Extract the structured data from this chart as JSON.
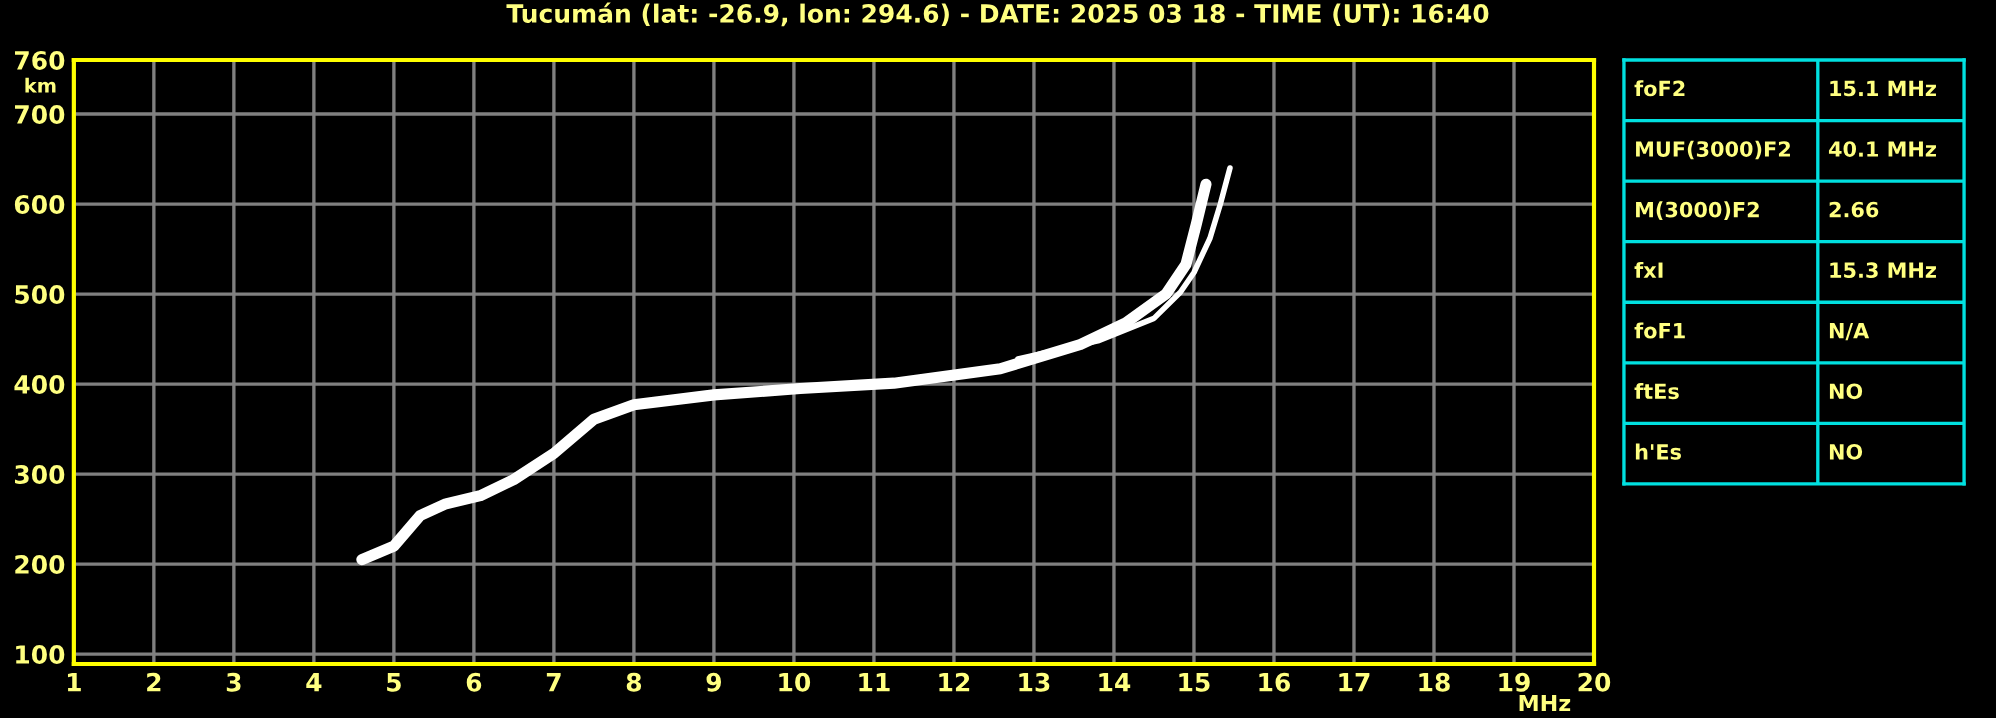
{
  "chart_data": [
    {
      "type": "line",
      "title": "Tucumán (lat: -26.9, lon: 294.6) - DATE: 2025 03 18 - TIME (UT): 16:40",
      "xlabel": "MHz",
      "ylabel": "km",
      "xlim": [
        1,
        20
      ],
      "xticks": [
        1,
        2,
        3,
        4,
        5,
        6,
        7,
        8,
        9,
        10,
        11,
        12,
        13,
        14,
        15,
        16,
        17,
        18,
        19,
        20
      ],
      "ylim": [
        89,
        760
      ],
      "yticks": [
        100,
        200,
        300,
        400,
        500,
        600,
        700,
        760
      ],
      "grid": true,
      "marker": "none",
      "line_style": "solid",
      "series": [
        {
          "color": "#ffffff",
          "x": [
            4.6,
            5.0,
            5.33,
            5.65,
            6.08,
            6.5,
            7.0,
            7.5,
            8.0,
            9.0,
            10.08,
            11.25,
            12.58,
            13.58,
            14.15,
            14.65,
            14.9,
            15.03,
            15.15
          ],
          "values": [
            205,
            220,
            254,
            267,
            276,
            294,
            323,
            361,
            377,
            388,
            395,
            401,
            417,
            444,
            468,
            500,
            533,
            578,
            622
          ]
        },
        {
          "color": "#ffffff",
          "x": [
            12.8,
            13.8,
            14.5,
            14.83,
            15.0,
            15.2,
            15.33,
            15.45
          ],
          "values": [
            428,
            448,
            473,
            502,
            524,
            562,
            600,
            640
          ]
        }
      ]
    },
    {
      "type": "other",
      "categories": [
        "foF2",
        "MUF(3000)F2",
        "M(3000)F2",
        "fxI",
        "foF1",
        "ftEs",
        "h'Es"
      ],
      "value_labels": [
        "15.1 MHz",
        "40.1 MHz",
        "2.66",
        "15.3 MHz",
        "N/A",
        "NO",
        "NO"
      ]
    }
  ]
}
